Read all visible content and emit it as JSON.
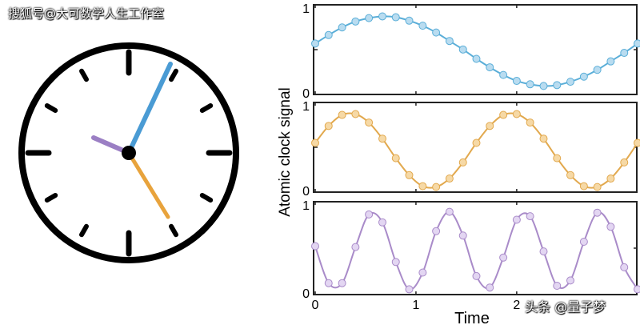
{
  "watermarks": {
    "top_left": "搜狐号@大可数学人生工作室",
    "bottom_right": "头条 @量子梦"
  },
  "clock": {
    "hands": [
      {
        "name": "hour",
        "color": "#9b7fc4"
      },
      {
        "name": "minute",
        "color": "#4a9bd4"
      },
      {
        "name": "second",
        "color": "#e8a33c"
      }
    ]
  },
  "chart_data": {
    "type": "line",
    "ylabel": "Atomic clock signal",
    "xlabel": "Time",
    "xlim": [
      0,
      3.2
    ],
    "ylim": [
      0,
      1
    ],
    "xticks": [
      "0",
      "1",
      "2"
    ],
    "yticks": [
      "0",
      "1"
    ],
    "grid": false,
    "x": [
      0,
      0.133,
      0.267,
      0.4,
      0.533,
      0.667,
      0.8,
      0.933,
      1.067,
      1.2,
      1.333,
      1.467,
      1.6,
      1.733,
      1.867,
      2.0,
      2.133,
      2.267,
      2.4,
      2.533,
      2.667,
      2.8,
      2.933,
      3.067,
      3.2
    ],
    "series": [
      {
        "color": "#5aaed8",
        "fill": "#b9dcf0",
        "values": [
          0.6,
          0.7,
          0.79,
          0.86,
          0.9,
          0.92,
          0.91,
          0.87,
          0.81,
          0.73,
          0.63,
          0.53,
          0.42,
          0.32,
          0.23,
          0.16,
          0.12,
          0.1,
          0.11,
          0.15,
          0.21,
          0.29,
          0.39,
          0.49,
          0.6
        ]
      },
      {
        "color": "#e2a94e",
        "fill": "#f6d9a6",
        "values": [
          0.58,
          0.78,
          0.91,
          0.92,
          0.82,
          0.63,
          0.4,
          0.2,
          0.07,
          0.06,
          0.16,
          0.35,
          0.58,
          0.78,
          0.91,
          0.92,
          0.82,
          0.63,
          0.4,
          0.2,
          0.07,
          0.06,
          0.16,
          0.35,
          0.58
        ]
      },
      {
        "color": "#a98bc9",
        "fill": "#e3d6f2",
        "values": [
          0.55,
          0.13,
          0.13,
          0.54,
          0.91,
          0.82,
          0.37,
          0.06,
          0.25,
          0.72,
          0.94,
          0.67,
          0.21,
          0.08,
          0.42,
          0.85,
          0.89,
          0.49,
          0.1,
          0.16,
          0.6,
          0.93,
          0.77,
          0.31,
          0.06
        ]
      }
    ]
  }
}
